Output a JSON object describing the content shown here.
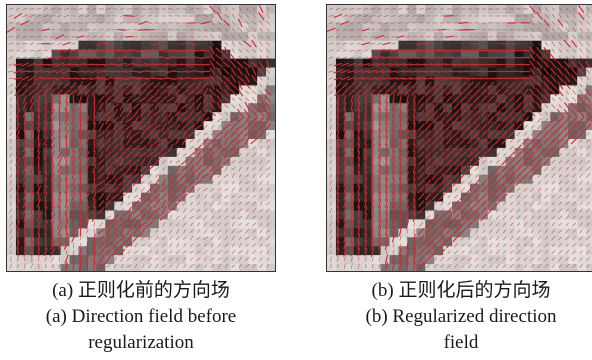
{
  "figures": [
    {
      "id": "a",
      "caption_cn": "(a) 正则化前的方向场",
      "caption_en_line1": "(a) Direction field before",
      "caption_en_line2": "regularization",
      "field_color": "#e0202c",
      "regularized": false
    },
    {
      "id": "b",
      "caption_cn": "(b) 正则化后的方向场",
      "caption_en_line1": "(b) Regularized direction",
      "caption_en_line2": "field",
      "field_color": "#e0202c",
      "regularized": true
    }
  ]
}
